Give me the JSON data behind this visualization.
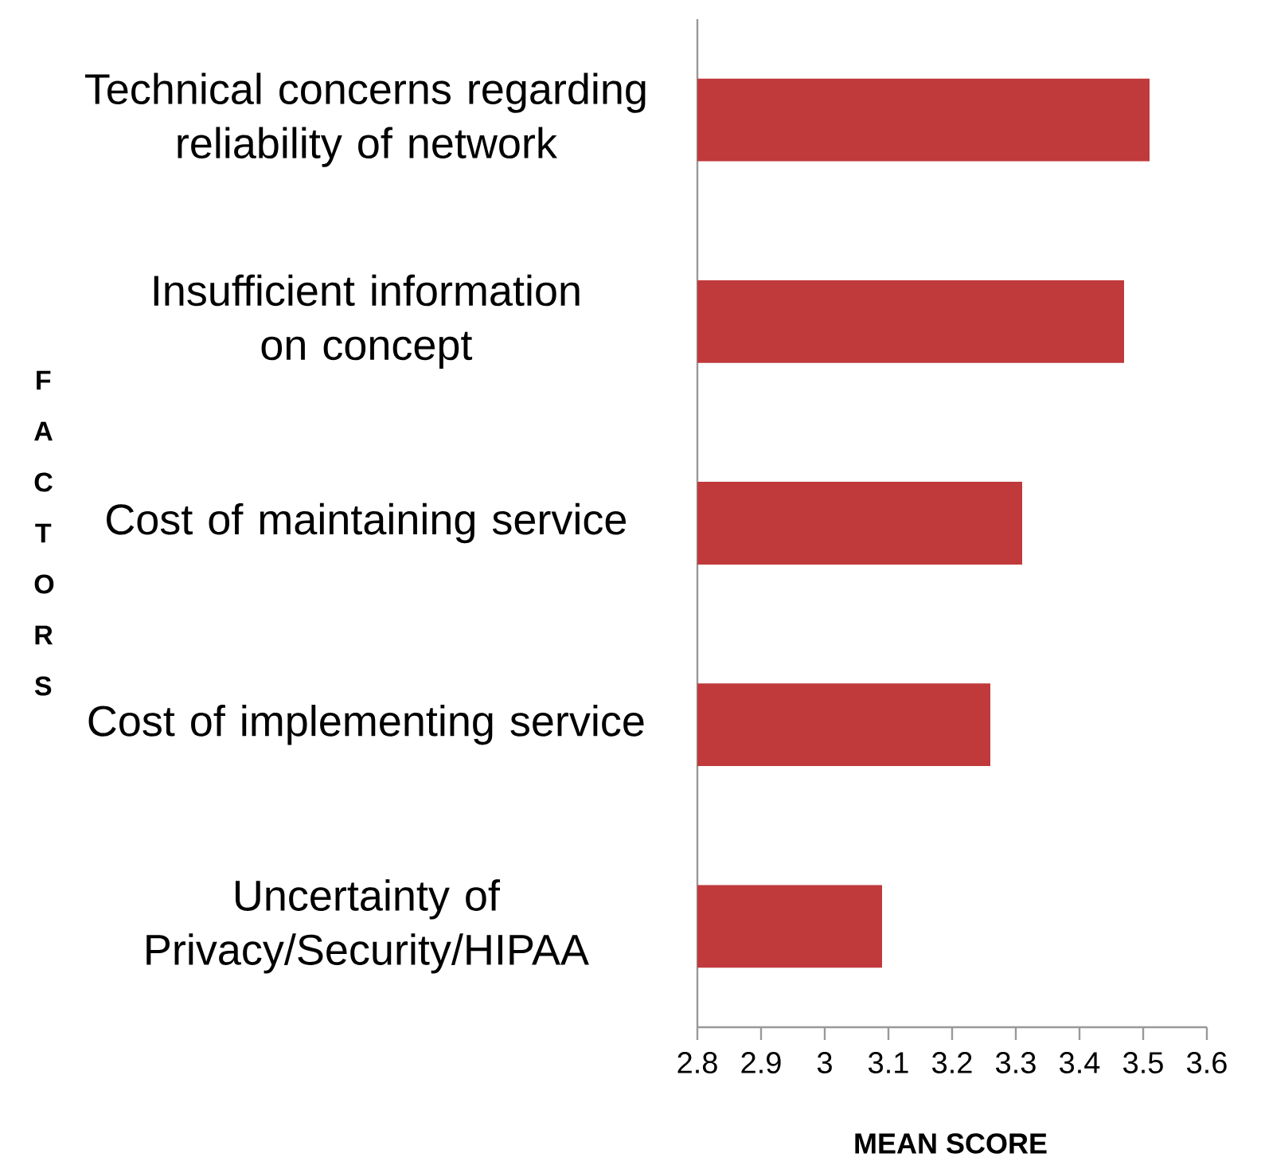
{
  "chart_data": {
    "type": "bar",
    "orientation": "horizontal",
    "categories": [
      "Technical concerns regarding reliability of network",
      "Insufficient information on concept",
      "Cost of maintaining service",
      "Cost of implementing service",
      "Uncertainty of Privacy/Security/HIPAA"
    ],
    "values": [
      3.51,
      3.47,
      3.31,
      3.26,
      3.09
    ],
    "color": "#c0393b",
    "xlim": [
      2.8,
      3.6
    ],
    "xticks": [
      2.8,
      2.9,
      3,
      3.1,
      3.2,
      3.3,
      3.4,
      3.5,
      3.6
    ],
    "xlabel": "MEAN SCORE",
    "ylabel": "F A C T O R S",
    "grid": false
  }
}
